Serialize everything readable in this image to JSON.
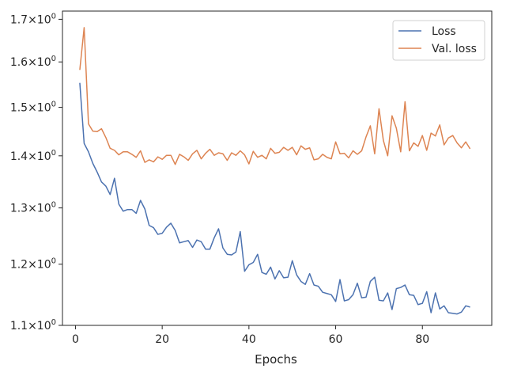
{
  "chart_data": {
    "type": "line",
    "xlabel": "Epochs",
    "ylabel": "",
    "yscale": "log",
    "xlim": [
      -3,
      96
    ],
    "ylim": [
      1.1,
      1.72
    ],
    "xticks": [
      0,
      20,
      40,
      60,
      80
    ],
    "xtick_labels": [
      "0",
      "20",
      "40",
      "60",
      "80"
    ],
    "yticks": [
      1.1,
      1.2,
      1.3,
      1.4,
      1.5,
      1.6,
      1.7
    ],
    "ytick_labels": [
      [
        "1.1",
        "0"
      ],
      [
        "1.2",
        "0"
      ],
      [
        "1.3",
        "0"
      ],
      [
        "1.4",
        "0"
      ],
      [
        "1.5",
        "0"
      ],
      [
        "1.6",
        "0"
      ],
      [
        "1.7",
        "0"
      ]
    ],
    "tick_times": "×10",
    "grid": false,
    "legend_position": "top-right",
    "x": [
      1,
      2,
      3,
      4,
      5,
      6,
      7,
      8,
      9,
      10,
      11,
      12,
      13,
      14,
      15,
      16,
      17,
      18,
      19,
      20,
      21,
      22,
      23,
      24,
      25,
      26,
      27,
      28,
      29,
      30,
      31,
      32,
      33,
      34,
      35,
      36,
      37,
      38,
      39,
      40,
      41,
      42,
      43,
      44,
      45,
      46,
      47,
      48,
      49,
      50,
      51,
      52,
      53,
      54,
      55,
      56,
      57,
      58,
      59,
      60,
      61,
      62,
      63,
      64,
      65,
      66,
      67,
      68,
      69,
      70,
      71,
      72,
      73,
      74,
      75,
      76,
      77,
      78,
      79,
      80,
      81,
      82,
      83,
      84,
      85,
      86,
      87,
      88,
      89,
      90,
      91
    ],
    "series": [
      {
        "name": "Loss",
        "color": "#4c72b0",
        "values": [
          1.553,
          1.425,
          1.408,
          1.385,
          1.368,
          1.349,
          1.341,
          1.325,
          1.356,
          1.307,
          1.294,
          1.297,
          1.297,
          1.29,
          1.314,
          1.298,
          1.268,
          1.264,
          1.252,
          1.254,
          1.265,
          1.272,
          1.259,
          1.237,
          1.239,
          1.241,
          1.229,
          1.242,
          1.239,
          1.226,
          1.226,
          1.246,
          1.262,
          1.228,
          1.217,
          1.216,
          1.221,
          1.257,
          1.188,
          1.199,
          1.203,
          1.217,
          1.186,
          1.183,
          1.195,
          1.175,
          1.189,
          1.177,
          1.178,
          1.206,
          1.182,
          1.171,
          1.166,
          1.184,
          1.165,
          1.163,
          1.153,
          1.151,
          1.149,
          1.138,
          1.174,
          1.139,
          1.141,
          1.149,
          1.168,
          1.144,
          1.145,
          1.171,
          1.178,
          1.14,
          1.139,
          1.152,
          1.125,
          1.159,
          1.161,
          1.165,
          1.149,
          1.148,
          1.133,
          1.135,
          1.154,
          1.12,
          1.152,
          1.126,
          1.131,
          1.12,
          1.119,
          1.118,
          1.121,
          1.131,
          1.129
        ]
      },
      {
        "name": "Val. loss",
        "color": "#dd8452",
        "values": [
          1.582,
          1.68,
          1.465,
          1.45,
          1.449,
          1.455,
          1.437,
          1.415,
          1.411,
          1.402,
          1.408,
          1.408,
          1.403,
          1.397,
          1.41,
          1.387,
          1.392,
          1.388,
          1.398,
          1.393,
          1.401,
          1.401,
          1.383,
          1.403,
          1.398,
          1.391,
          1.404,
          1.411,
          1.394,
          1.405,
          1.413,
          1.401,
          1.406,
          1.404,
          1.391,
          1.406,
          1.401,
          1.41,
          1.402,
          1.384,
          1.409,
          1.397,
          1.401,
          1.394,
          1.415,
          1.405,
          1.407,
          1.417,
          1.411,
          1.417,
          1.402,
          1.42,
          1.413,
          1.416,
          1.392,
          1.394,
          1.403,
          1.397,
          1.394,
          1.428,
          1.404,
          1.405,
          1.396,
          1.41,
          1.403,
          1.41,
          1.438,
          1.461,
          1.404,
          1.497,
          1.431,
          1.4,
          1.482,
          1.456,
          1.408,
          1.512,
          1.41,
          1.426,
          1.419,
          1.441,
          1.411,
          1.446,
          1.44,
          1.463,
          1.422,
          1.436,
          1.441,
          1.426,
          1.416,
          1.428,
          1.414
        ]
      }
    ]
  }
}
